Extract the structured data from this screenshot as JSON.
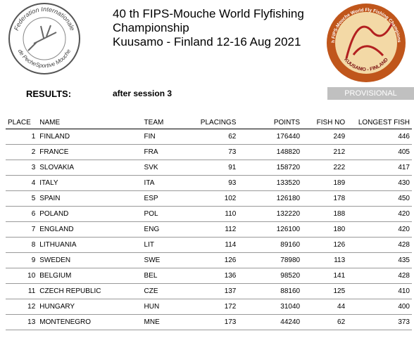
{
  "header": {
    "title_lines": [
      "40 th FIPS-Mouche World Flyfishing",
      "Championship",
      "Kuusamo - Finland 12-16 Aug 2021"
    ],
    "left_logo": {
      "top_text": "Federation Internationale",
      "bottom_text": "de PecheSportive Mouche"
    },
    "right_logo": {
      "top_text": "40th FIPS-Mouche World Fly Fishing Championship",
      "bottom_text": "KUUSAMO - FINLAND"
    }
  },
  "results_label": "RESULTS:",
  "session": "after session 3",
  "status": "PROVISIONAL",
  "table": {
    "columns": [
      "PLACE",
      "NAME",
      "TEAM",
      "PLACINGS",
      "POINTS",
      "FISH NO",
      "LONGEST FISH"
    ],
    "rows": [
      [
        1,
        "FINLAND",
        "FIN",
        62,
        176440,
        249,
        446
      ],
      [
        2,
        "FRANCE",
        "FRA",
        73,
        148820,
        212,
        405
      ],
      [
        3,
        "SLOVAKIA",
        "SVK",
        91,
        158720,
        222,
        417
      ],
      [
        4,
        "ITALY",
        "ITA",
        93,
        133520,
        189,
        430
      ],
      [
        5,
        "SPAIN",
        "ESP",
        102,
        126180,
        178,
        450
      ],
      [
        6,
        "POLAND",
        "POL",
        110,
        132220,
        188,
        420
      ],
      [
        7,
        "ENGLAND",
        "ENG",
        112,
        126100,
        180,
        420
      ],
      [
        8,
        "LITHUANIA",
        "LIT",
        114,
        89160,
        126,
        428
      ],
      [
        9,
        "SWEDEN",
        "SWE",
        126,
        78980,
        113,
        435
      ],
      [
        10,
        "BELGIUM",
        "BEL",
        136,
        98520,
        141,
        428
      ],
      [
        11,
        "CZECH REPUBLIC",
        "CZE",
        137,
        88160,
        125,
        410
      ],
      [
        12,
        "HUNGARY",
        "HUN",
        172,
        31040,
        44,
        400
      ],
      [
        13,
        "MONTENEGRO",
        "MNE",
        173,
        44240,
        62,
        373
      ]
    ]
  }
}
